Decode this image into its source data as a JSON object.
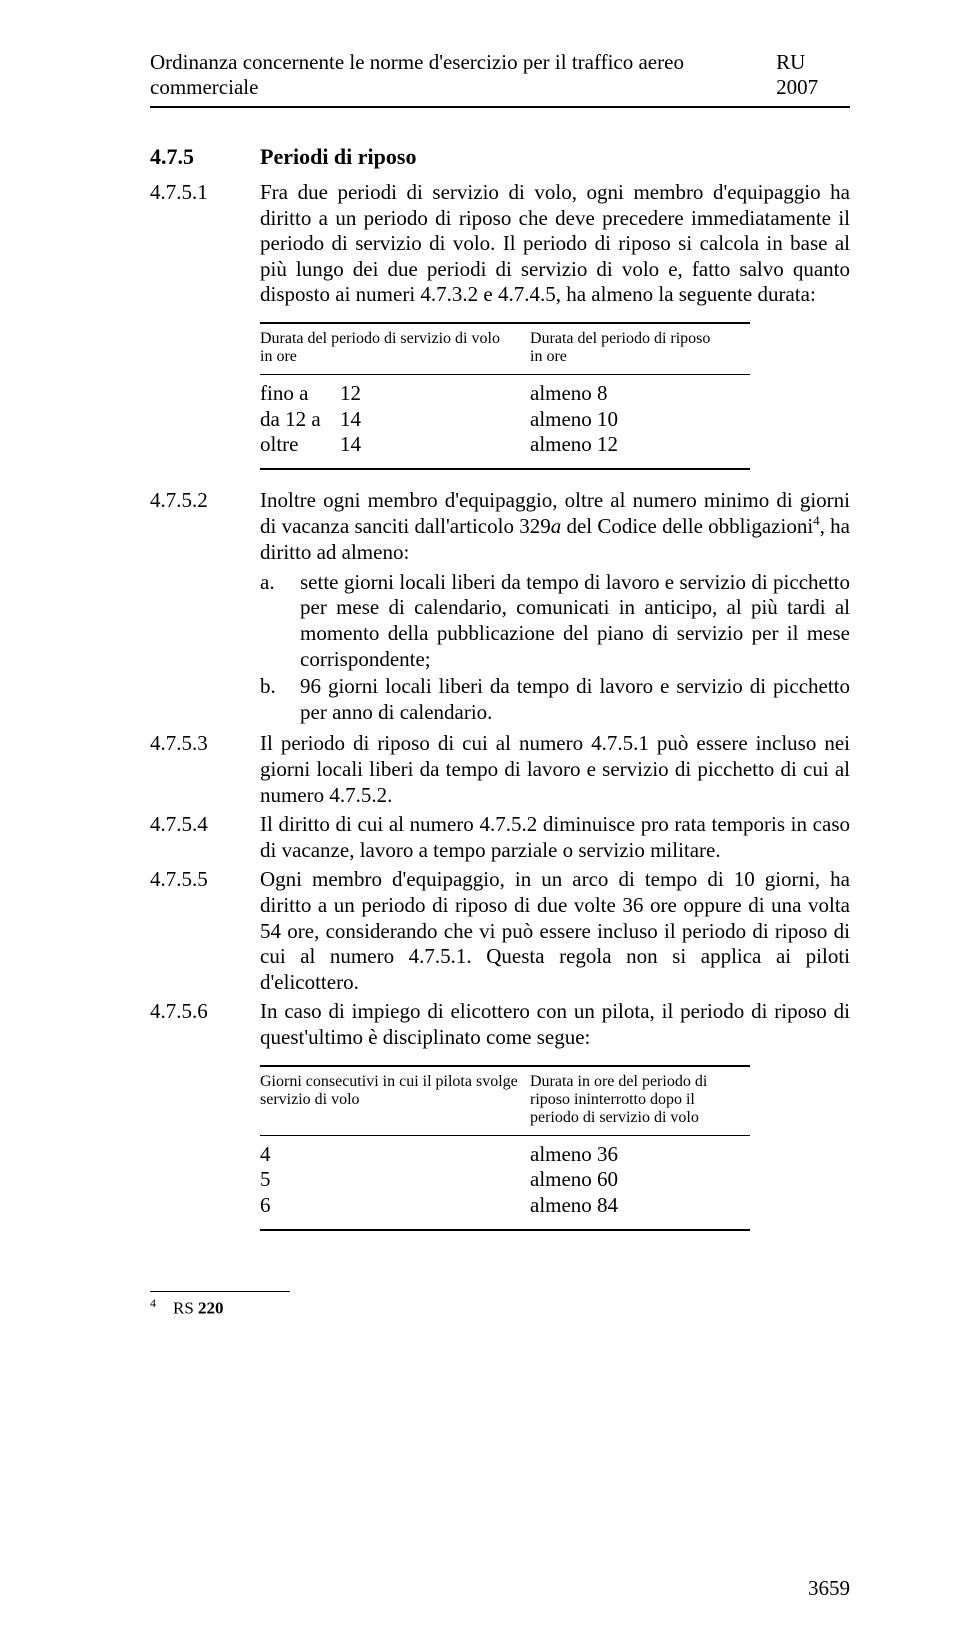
{
  "header": {
    "left": "Ordinanza concernente le norme d'esercizio per il traffico aereo commerciale",
    "right": "RU 2007"
  },
  "s475": {
    "num": "4.7.5",
    "title": "Periodi di riposo"
  },
  "s4751": {
    "num": "4.7.5.1",
    "text": "Fra due periodi di servizio di volo, ogni membro d'equipaggio ha diritto a un periodo di riposo che deve precedere immediatamente il periodo di servizio di volo. Il periodo di riposo si calcola in base al più lungo dei due periodi di servizio di volo e, fatto salvo quanto disposto ai numeri 4.7.3.2 e 4.7.4.5, ha almeno la seguente durata:"
  },
  "table1": {
    "head_col1_l1": "Durata del periodo di servizio di volo",
    "head_col1_l2": "in ore",
    "head_col2_l1": "Durata del periodo di riposo",
    "head_col2_l2": "in ore",
    "rows": [
      {
        "c1": "fino a",
        "c2": "12",
        "c3": "almeno 8"
      },
      {
        "c1": "da 12 a",
        "c2": "14",
        "c3": "almeno 10"
      },
      {
        "c1": "oltre",
        "c2": "14",
        "c3": "almeno 12"
      }
    ]
  },
  "s4752": {
    "num": "4.7.5.2",
    "text_before_sup": "Inoltre ogni membro d'equipaggio, oltre al numero minimo di giorni di vacanza sanciti dall'articolo 329",
    "italic_a": "a",
    "text_mid": " del Codice delle obbligazioni",
    "sup": "4",
    "text_after_sup": ", ha diritto ad almeno:",
    "items": {
      "a": {
        "letter": "a.",
        "text": "sette giorni locali liberi da tempo di lavoro e servizio di picchetto per mese di calendario, comunicati in anticipo, al più tardi al momento della pubblicazione del piano di servizio per il mese corrispondente;"
      },
      "b": {
        "letter": "b.",
        "text": "96 giorni locali liberi da tempo di lavoro e servizio di picchetto per anno di calendario."
      }
    }
  },
  "s4753": {
    "num": "4.7.5.3",
    "text": "Il periodo di riposo di cui al numero 4.7.5.1 può essere incluso nei giorni locali liberi da tempo di lavoro e servizio di picchetto di cui al numero 4.7.5.2."
  },
  "s4754": {
    "num": "4.7.5.4",
    "text": "Il diritto di cui al numero 4.7.5.2 diminuisce pro rata temporis in caso di vacanze, lavoro a tempo parziale o servizio militare."
  },
  "s4755": {
    "num": "4.7.5.5",
    "text": "Ogni membro d'equipaggio, in un arco di tempo di 10 giorni, ha diritto a un periodo di riposo di due volte 36 ore oppure di una volta 54 ore, considerando che vi può essere incluso il periodo di riposo di cui al numero 4.7.5.1. Questa regola non si applica ai piloti d'elicottero."
  },
  "s4756": {
    "num": "4.7.5.6",
    "text": "In caso di impiego di elicottero con un pilota, il periodo di riposo di quest'ultimo è disciplinato come segue:"
  },
  "table2": {
    "head_col1_l1": "Giorni consecutivi in cui il pilota svolge",
    "head_col1_l2": "servizio di volo",
    "head_col2_l1": "Durata in ore del periodo di",
    "head_col2_l2": "riposo ininterrotto dopo il",
    "head_col2_l3": "periodo di servizio di volo",
    "rows": [
      {
        "c1": "4",
        "c2": "almeno 36"
      },
      {
        "c1": "5",
        "c2": "almeno 60"
      },
      {
        "c1": "6",
        "c2": "almeno 84"
      }
    ]
  },
  "footnote": {
    "sup": "4",
    "text": "RS ",
    "bold": "220"
  },
  "page_number": "3659"
}
